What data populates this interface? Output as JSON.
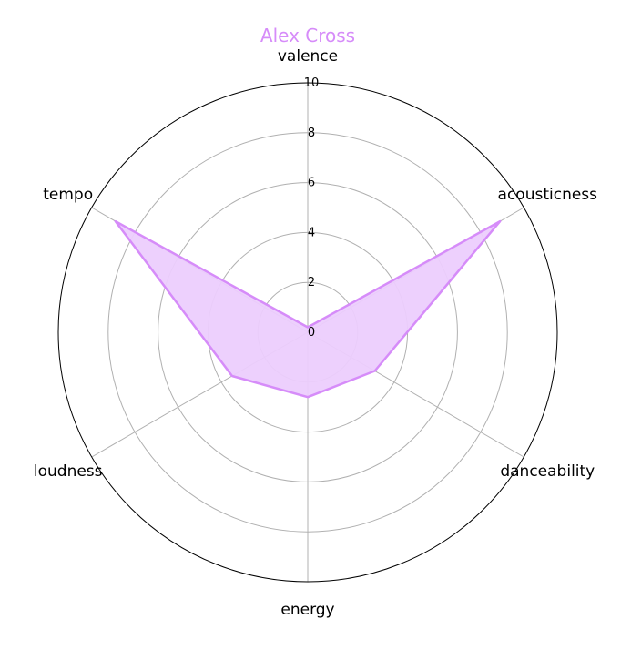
{
  "chart_data": {
    "type": "radar",
    "title": "Alex Cross",
    "axes": [
      "valence",
      "acousticness",
      "danceability",
      "energy",
      "loudness",
      "tempo"
    ],
    "rlim": [
      0,
      10
    ],
    "rticks": [
      "0",
      "2",
      "4",
      "6",
      "8",
      "10"
    ],
    "series": [
      {
        "values": [
          0.2,
          8.9,
          3.1,
          2.6,
          3.5,
          8.9
        ]
      }
    ],
    "grid": true,
    "colors": {
      "series_line": "#d68cf9",
      "series_fill": "#eccdfd",
      "title": "#d68cf9",
      "grid": "#b0b0b0",
      "frame": "#000000"
    }
  }
}
